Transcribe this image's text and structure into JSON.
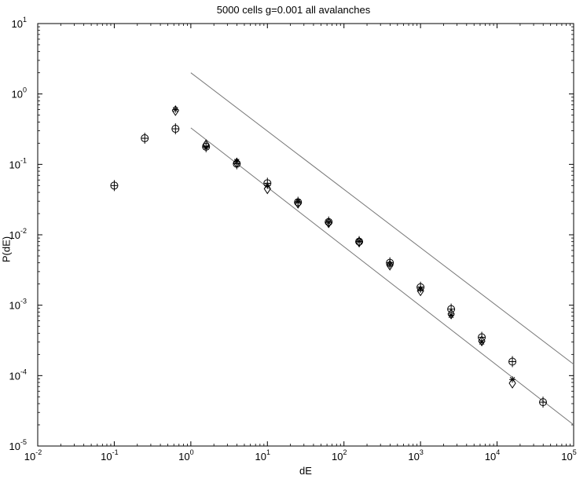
{
  "chart_data": {
    "type": "scatter",
    "title": "5000 cells g=0.001 all avalanches",
    "xlabel": "dE",
    "ylabel": "P(dE)",
    "xscale": "log",
    "yscale": "log",
    "xlim": [
      0.01,
      100000
    ],
    "ylim": [
      1e-05,
      10
    ],
    "grid": false,
    "x_ticks": [
      {
        "label_base": "10",
        "label_exp": "-2",
        "value": 0.01
      },
      {
        "label_base": "10",
        "label_exp": "-1",
        "value": 0.1
      },
      {
        "label_base": "10",
        "label_exp": "0",
        "value": 1
      },
      {
        "label_base": "10",
        "label_exp": "1",
        "value": 10
      },
      {
        "label_base": "10",
        "label_exp": "2",
        "value": 100
      },
      {
        "label_base": "10",
        "label_exp": "3",
        "value": 1000
      },
      {
        "label_base": "10",
        "label_exp": "4",
        "value": 10000
      },
      {
        "label_base": "10",
        "label_exp": "5",
        "value": 100000
      }
    ],
    "y_ticks": [
      {
        "label_base": "10",
        "label_exp": "-5",
        "value": 1e-05
      },
      {
        "label_base": "10",
        "label_exp": "-4",
        "value": 0.0001
      },
      {
        "label_base": "10",
        "label_exp": "-3",
        "value": 0.001
      },
      {
        "label_base": "10",
        "label_exp": "-2",
        "value": 0.01
      },
      {
        "label_base": "10",
        "label_exp": "-1",
        "value": 0.1
      },
      {
        "label_base": "10",
        "label_exp": "0",
        "value": 1
      },
      {
        "label_base": "10",
        "label_exp": "1",
        "value": 10
      }
    ],
    "series": [
      {
        "marker": "circle-plus",
        "points": [
          [
            0.1,
            0.05
          ],
          [
            0.25,
            0.235
          ],
          [
            0.63,
            0.32
          ],
          [
            1.58,
            0.178
          ],
          [
            3.98,
            0.102
          ],
          [
            10,
            0.054
          ],
          [
            25.1,
            0.029
          ],
          [
            63.1,
            0.0152
          ],
          [
            158,
            0.008
          ],
          [
            398,
            0.004
          ],
          [
            1000,
            0.0018
          ],
          [
            2512,
            0.00088
          ],
          [
            6310,
            0.00035
          ],
          [
            15849,
            0.000158
          ],
          [
            39810,
            4.2e-05
          ]
        ]
      },
      {
        "marker": "diamond",
        "points": [
          [
            0.63,
            0.58
          ],
          [
            1.58,
            0.19
          ],
          [
            3.98,
            0.105
          ],
          [
            10,
            0.045
          ],
          [
            25.1,
            0.028
          ],
          [
            63.1,
            0.0148
          ],
          [
            158,
            0.0079
          ],
          [
            398,
            0.0037
          ],
          [
            1000,
            0.0016
          ],
          [
            2512,
            0.00075
          ],
          [
            6310,
            0.00031
          ],
          [
            15849,
            7.8e-05
          ]
        ]
      },
      {
        "marker": "asterisk",
        "points": [
          [
            0.63,
            0.6
          ],
          [
            1.58,
            0.175
          ],
          [
            3.98,
            0.11
          ],
          [
            10,
            0.05
          ],
          [
            25.1,
            0.0295
          ],
          [
            63.1,
            0.015
          ],
          [
            158,
            0.0081
          ],
          [
            398,
            0.0038
          ],
          [
            1000,
            0.0017
          ],
          [
            2512,
            0.00072
          ],
          [
            6310,
            0.0003
          ],
          [
            15849,
            8.8e-05
          ]
        ]
      }
    ],
    "lines": [
      {
        "x": [
          1,
          100000
        ],
        "y": [
          2.0,
          0.000145
        ]
      },
      {
        "x": [
          1,
          100000
        ],
        "y": [
          0.33,
          2e-05
        ]
      }
    ],
    "colors": {
      "axis": "#000000",
      "marker": "#000000",
      "fit_line": "#777777"
    }
  }
}
